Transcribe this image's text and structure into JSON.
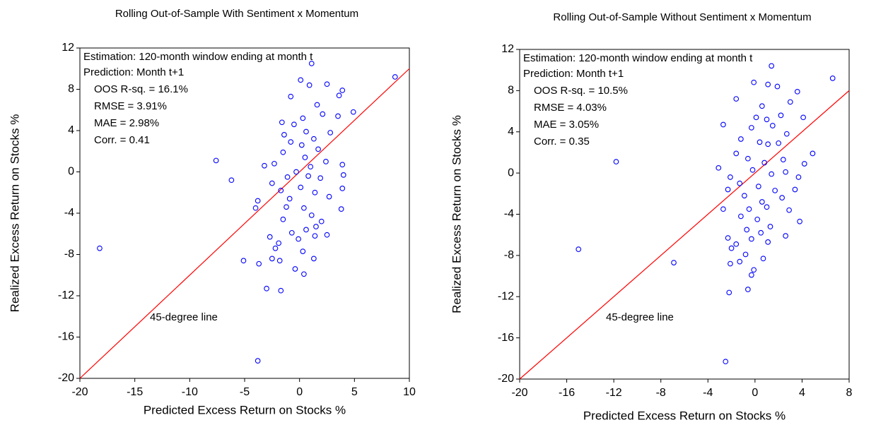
{
  "chart_data": [
    {
      "type": "scatter",
      "title": "Rolling Out-of-Sample With Sentiment x Momentum",
      "xlabel": "Predicted Excess Return on Stocks %",
      "ylabel": "Realized Excess Return on Stocks %",
      "notes": [
        "Estimation: 120-month window ending at month t",
        "Prediction: Month t+1"
      ],
      "stats": [
        "OOS R-sq. = 16.1%",
        "RMSE = 3.91%",
        "MAE = 2.98%",
        "Corr. = 0.41"
      ],
      "stats_color": "#ff0000",
      "diagonal": {
        "label": "45-degree line",
        "color": "#ff0000"
      },
      "color": "#0000ff",
      "xlim": [
        -20,
        10
      ],
      "xticks": [
        -20,
        -15,
        -10,
        -5,
        0,
        5,
        10
      ],
      "ylim": [
        -20,
        12
      ],
      "yticks": [
        -20,
        -16,
        -12,
        -8,
        -4,
        0,
        4,
        8,
        12
      ],
      "x": [
        -18.2,
        -7.6,
        -6.2,
        -3.8,
        8.7,
        4.9,
        -3.0,
        -1.7,
        -5.1,
        1.1,
        0.1,
        3.9,
        3.6,
        2.5,
        0.9,
        -0.8,
        1.6,
        -1.6,
        0.3,
        -0.5,
        2.1,
        3.5,
        -1.4,
        0.6,
        1.3,
        2.8,
        -0.8,
        0.2,
        1.7,
        -1.5,
        -2.3,
        -3.2,
        0.5,
        1.0,
        2.4,
        3.9,
        -0.3,
        0.8,
        1.9,
        4.0,
        -1.1,
        -2.5,
        -1.7,
        0.1,
        1.4,
        2.7,
        3.9,
        -3.8,
        -0.9,
        0.4,
        3.8,
        -4.0,
        -1.2,
        1.1,
        -1.5,
        2.0,
        0.6,
        -0.7,
        1.5,
        2.5,
        -2.7,
        -0.1,
        1.4,
        -1.9,
        -2.2,
        0.3,
        -2.5,
        1.3,
        -3.7,
        -0.4,
        0.4,
        -1.8
      ],
      "values": [
        -7.4,
        1.1,
        -0.8,
        -18.3,
        9.2,
        5.8,
        -11.3,
        -11.5,
        -8.6,
        10.5,
        8.9,
        7.9,
        7.4,
        8.5,
        8.4,
        7.3,
        6.5,
        4.8,
        5.2,
        4.6,
        5.6,
        5.4,
        3.6,
        3.9,
        3.2,
        3.8,
        2.9,
        2.6,
        2.2,
        1.9,
        0.8,
        0.6,
        1.4,
        0.5,
        1.0,
        0.7,
        0.0,
        -0.4,
        -0.6,
        -0.3,
        -0.5,
        -1.1,
        -1.8,
        -1.5,
        -2.0,
        -2.4,
        -1.6,
        -2.8,
        -2.6,
        -3.5,
        -3.6,
        -3.5,
        -3.4,
        -4.2,
        -4.6,
        -4.8,
        -5.6,
        -5.9,
        -5.3,
        -6.1,
        -6.3,
        -6.5,
        -6.2,
        -6.9,
        -7.4,
        -7.7,
        -8.4,
        -8.4,
        -8.9,
        -9.4,
        -9.9,
        -8.6
      ]
    },
    {
      "type": "scatter",
      "title": "Rolling Out-of-Sample Without Sentiment x Momentum",
      "xlabel": "Predicted Excess Return on Stocks %",
      "ylabel": "Realized Excess Return on Stocks %",
      "notes": [
        "Estimation: 120-month window ending at month t",
        "Prediction: Month t+1"
      ],
      "stats": [
        "OOS R-sq. = 10.5%",
        "RMSE = 4.03%",
        "MAE = 3.05%",
        "Corr. = 0.35"
      ],
      "stats_color": "#ff0000",
      "diagonal": {
        "label": "45-degree line",
        "color": "#ff0000"
      },
      "color": "#0000ff",
      "xlim": [
        -20,
        8
      ],
      "xticks": [
        -20,
        -16,
        -12,
        -8,
        -4,
        0,
        4,
        8
      ],
      "ylim": [
        -20,
        12
      ],
      "yticks": [
        -20,
        -16,
        -12,
        -8,
        -4,
        0,
        4,
        8,
        12
      ],
      "x": [
        -15.0,
        -11.8,
        -6.9,
        -2.5,
        6.6,
        4.9,
        1.4,
        -0.1,
        1.1,
        1.9,
        3.6,
        3.0,
        -1.6,
        0.6,
        -2.7,
        0.1,
        1.0,
        2.2,
        4.1,
        -0.3,
        1.5,
        2.7,
        -1.2,
        0.4,
        1.1,
        2.0,
        -1.6,
        -0.6,
        0.8,
        2.4,
        4.2,
        -3.1,
        -0.2,
        1.4,
        2.6,
        3.7,
        -2.1,
        -1.3,
        0.3,
        1.7,
        3.4,
        -2.3,
        -0.9,
        0.6,
        2.3,
        -2.7,
        -0.5,
        1.0,
        2.9,
        -1.2,
        0.2,
        3.8,
        -0.7,
        1.3,
        -2.3,
        0.5,
        2.6,
        -1.6,
        -0.3,
        1.1,
        -2.0,
        -0.8,
        0.7,
        -2.1,
        -1.3,
        -0.3,
        -0.6,
        -2.2,
        -0.1
      ],
      "values": [
        -7.4,
        1.1,
        -8.7,
        -18.3,
        9.2,
        1.9,
        10.4,
        8.8,
        8.6,
        8.4,
        7.9,
        6.9,
        7.2,
        6.5,
        4.7,
        5.4,
        5.2,
        5.6,
        5.4,
        4.4,
        4.6,
        3.8,
        3.3,
        3.0,
        2.8,
        2.9,
        1.9,
        1.4,
        1.0,
        1.3,
        0.9,
        0.5,
        0.3,
        -0.1,
        0.1,
        -0.4,
        -0.4,
        -1.0,
        -1.3,
        -1.7,
        -1.6,
        -1.6,
        -2.2,
        -2.8,
        -2.4,
        -3.5,
        -3.5,
        -3.3,
        -3.6,
        -4.2,
        -4.5,
        -4.7,
        -5.5,
        -5.2,
        -6.3,
        -5.8,
        -6.1,
        -6.9,
        -6.4,
        -6.7,
        -7.3,
        -7.9,
        -8.3,
        -8.8,
        -8.6,
        -9.9,
        -11.3,
        -11.6,
        -9.4
      ]
    }
  ]
}
